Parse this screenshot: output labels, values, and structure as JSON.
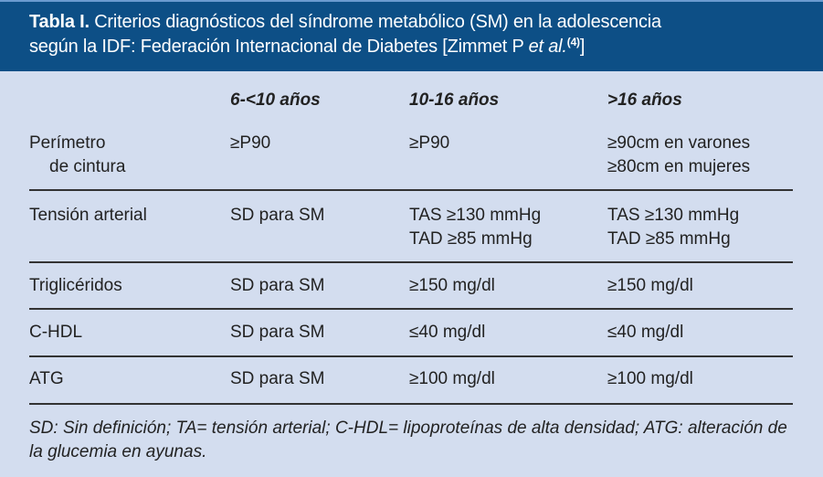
{
  "title": {
    "label": "Tabla I.",
    "line1": "Criterios diagnósticos del síndrome metabólico (SM) en la adolescencia",
    "line2_prefix": "según la IDF: Federación Internacional de Diabetes [Zimmet P ",
    "line2_italic": "et al.",
    "line2_ref": "(4)",
    "line2_suffix": "]"
  },
  "columns": [
    "",
    "6-<10 años",
    "10-16 años",
    ">16 años"
  ],
  "rows": [
    {
      "label": [
        "Perímetro",
        "de cintura"
      ],
      "c1": [
        "≥P90"
      ],
      "c2": [
        "≥P90"
      ],
      "c3": [
        "≥90cm en varones",
        "≥80cm en mujeres"
      ]
    },
    {
      "label": [
        "Tensión arterial"
      ],
      "c1": [
        "SD para SM"
      ],
      "c2": [
        "TAS ≥130 mmHg",
        "TAD ≥85 mmHg"
      ],
      "c3": [
        "TAS ≥130 mmHg",
        "TAD ≥85 mmHg"
      ]
    },
    {
      "label": [
        "Triglicéridos"
      ],
      "c1": [
        "SD para SM"
      ],
      "c2": [
        "≥150 mg/dl"
      ],
      "c3": [
        "≥150 mg/dl"
      ]
    },
    {
      "label": [
        "C-HDL"
      ],
      "c1": [
        "SD para SM"
      ],
      "c2": [
        "≤40 mg/dl"
      ],
      "c3": [
        "≤40 mg/dl"
      ]
    },
    {
      "label": [
        "ATG"
      ],
      "c1": [
        "SD para SM"
      ],
      "c2": [
        "≥100 mg/dl"
      ],
      "c3": [
        "≥100 mg/dl"
      ]
    }
  ],
  "footnote": "SD: Sin definición; TA= tensión arterial; C-HDL= lipoproteínas de alta densidad; ATG: alteración de la glucemia en ayunas.",
  "colors": {
    "header_bg": "#0d4f86",
    "body_bg": "#d3ddef"
  }
}
